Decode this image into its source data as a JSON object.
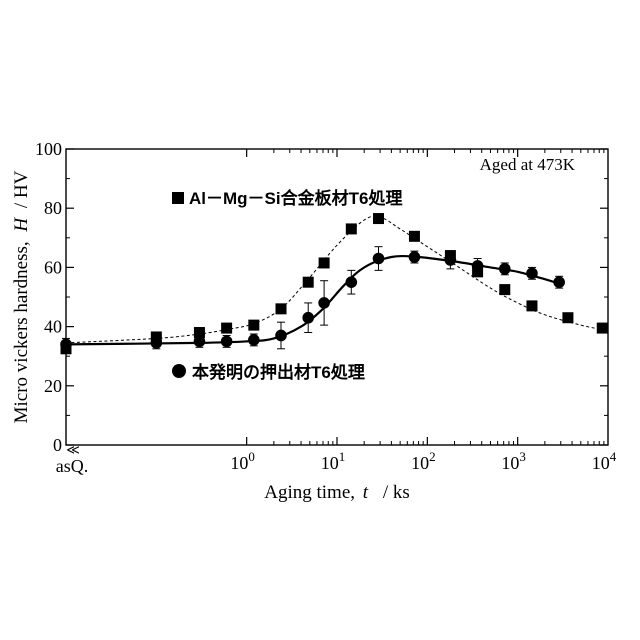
{
  "chart_data": {
    "type": "scatter",
    "x_scale": "log",
    "xlim": [
      0.01,
      10000
    ],
    "ylim": [
      0,
      100
    ],
    "xlabel": "Aging  time,",
    "xlabel_var": "t",
    "xlabel_unit": "/ ks",
    "ylabel": "Micro vickers hardness,",
    "ylabel_var": "H",
    "ylabel_unit": "/ HV",
    "annotation": "Aged at 473K",
    "x_first_tick_label": "asQ.",
    "x_break_mark": "≪",
    "x_ticks": [
      {
        "value": 1,
        "base": "10",
        "exp": "0"
      },
      {
        "value": 10,
        "base": "10",
        "exp": "1"
      },
      {
        "value": 100,
        "base": "10",
        "exp": "2"
      },
      {
        "value": 1000,
        "base": "10",
        "exp": "3"
      },
      {
        "value": 10000,
        "base": "10",
        "exp": "4"
      }
    ],
    "y_ticks": [
      "0",
      "20",
      "40",
      "60",
      "80",
      "100"
    ],
    "series": [
      {
        "name": "Al－Mg－Si合金板材T6処理",
        "marker": "square",
        "line": "dashed",
        "color": "#000000",
        "points": [
          {
            "x": 0.01,
            "y": 32.5
          },
          {
            "x": 0.1,
            "y": 36.5
          },
          {
            "x": 0.3,
            "y": 38
          },
          {
            "x": 0.6,
            "y": 39.5
          },
          {
            "x": 1.2,
            "y": 40.5
          },
          {
            "x": 2.4,
            "y": 46
          },
          {
            "x": 4.8,
            "y": 55
          },
          {
            "x": 7.2,
            "y": 61.5
          },
          {
            "x": 14.4,
            "y": 73
          },
          {
            "x": 28.8,
            "y": 76.5
          },
          {
            "x": 72,
            "y": 70.5
          },
          {
            "x": 180,
            "y": 64
          },
          {
            "x": 360,
            "y": 58.5
          },
          {
            "x": 720,
            "y": 52.5
          },
          {
            "x": 1440,
            "y": 47
          },
          {
            "x": 3600,
            "y": 43
          },
          {
            "x": 8640,
            "y": 39.5
          }
        ]
      },
      {
        "name": "本発明の押出材T6処理",
        "marker": "circle",
        "line": "solid",
        "color": "#000000",
        "points": [
          {
            "x": 0.01,
            "y": 34,
            "err": 2
          },
          {
            "x": 0.1,
            "y": 34.5,
            "err": 2
          },
          {
            "x": 0.3,
            "y": 35,
            "err": 2
          },
          {
            "x": 0.6,
            "y": 35,
            "err": 2
          },
          {
            "x": 1.2,
            "y": 35.5,
            "err": 2
          },
          {
            "x": 2.4,
            "y": 37,
            "err": 4.5
          },
          {
            "x": 4.8,
            "y": 43,
            "err": 5
          },
          {
            "x": 7.2,
            "y": 48,
            "err": 7.5
          },
          {
            "x": 14.4,
            "y": 55,
            "err": 4
          },
          {
            "x": 28.8,
            "y": 63,
            "err": 4
          },
          {
            "x": 72,
            "y": 63.5,
            "err": 2
          },
          {
            "x": 180,
            "y": 62.5,
            "err": 3
          },
          {
            "x": 360,
            "y": 60.5,
            "err": 2.5
          },
          {
            "x": 720,
            "y": 59.5,
            "err": 2
          },
          {
            "x": 1440,
            "y": 58,
            "err": 2
          },
          {
            "x": 2880,
            "y": 55,
            "err": 2
          }
        ]
      }
    ],
    "dashed_fit": [
      [
        0.01,
        34.5
      ],
      [
        0.1,
        36
      ],
      [
        0.3,
        37.5
      ],
      [
        0.6,
        39
      ],
      [
        1.2,
        41
      ],
      [
        2.4,
        46
      ],
      [
        4.8,
        56
      ],
      [
        10,
        67.5
      ],
      [
        20,
        76
      ],
      [
        30,
        77
      ],
      [
        50,
        73
      ],
      [
        100,
        67
      ],
      [
        200,
        61
      ],
      [
        500,
        53
      ],
      [
        1000,
        48
      ],
      [
        2000,
        44
      ],
      [
        5000,
        40.5
      ],
      [
        8640,
        39
      ]
    ],
    "solid_fit": [
      [
        0.01,
        34
      ],
      [
        0.3,
        34.5
      ],
      [
        1,
        35
      ],
      [
        2,
        36
      ],
      [
        4,
        40
      ],
      [
        7,
        46
      ],
      [
        12,
        54
      ],
      [
        20,
        60
      ],
      [
        40,
        63.5
      ],
      [
        80,
        63.5
      ],
      [
        200,
        62
      ],
      [
        500,
        60
      ],
      [
        1000,
        58.5
      ],
      [
        2000,
        56
      ],
      [
        2880,
        54.5
      ]
    ]
  }
}
